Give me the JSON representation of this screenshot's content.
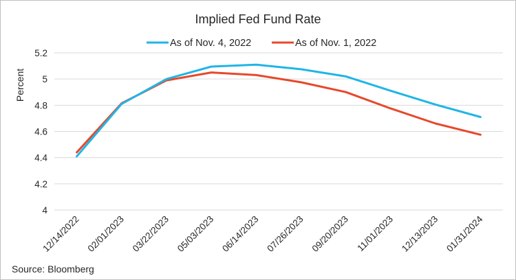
{
  "chart_data": {
    "type": "line",
    "title": "Implied Fed Fund Rate",
    "xlabel": "",
    "ylabel": "Percent",
    "ylim": [
      4,
      5.2
    ],
    "yticks": [
      4,
      4.2,
      4.4,
      4.6,
      4.8,
      5,
      5.2
    ],
    "ytick_labels": [
      "4",
      "4.2",
      "4.4",
      "4.6",
      "4.8",
      "5",
      "5.2"
    ],
    "grid": true,
    "legend_position": "top",
    "categories": [
      "12/14/2022",
      "02/01/2023",
      "03/22/2023",
      "05/03/2023",
      "06/14/2023",
      "07/26/2023",
      "09/20/2023",
      "11/01/2023",
      "12/13/2023",
      "01/31/2024"
    ],
    "series": [
      {
        "name": "As of Nov. 4, 2022",
        "color": "#1fb5e6",
        "values": [
          4.41,
          4.81,
          5.0,
          5.095,
          5.11,
          5.075,
          5.02,
          4.91,
          4.805,
          4.71
        ]
      },
      {
        "name": "As of Nov. 1, 2022",
        "color": "#e8472b",
        "values": [
          4.44,
          4.815,
          4.99,
          5.05,
          5.03,
          4.975,
          4.9,
          4.775,
          4.66,
          4.575
        ]
      }
    ]
  },
  "source": "Source: Bloomberg"
}
